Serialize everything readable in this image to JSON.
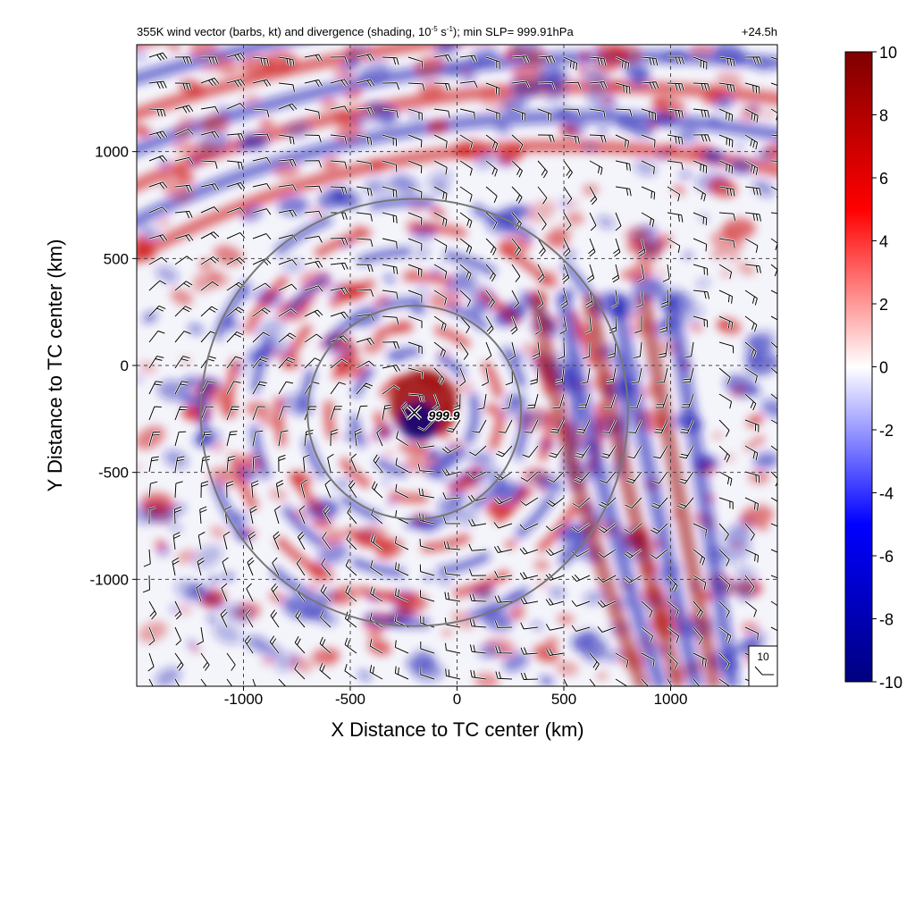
{
  "chart_data": {
    "type": "heatmap",
    "title": "355K wind vector (barbs, kt) and divergence (shading, 10",
    "title_sup1": "-5",
    "title_mid": " s",
    "title_sup2": "-1",
    "title_tail": "); min SLP= 999.91hPa",
    "forecast_time": "+24.5h",
    "xlabel": "X Distance to TC center (km)",
    "ylabel": "Y Distance to TC center (km)",
    "xlim": [
      -1500,
      1500
    ],
    "ylim": [
      -1500,
      1500
    ],
    "x_ticks": [
      -1000,
      -500,
      0,
      500,
      1000
    ],
    "y_ticks": [
      1000,
      500,
      0,
      -500,
      -1000
    ],
    "x_tick_labels": [
      "-1000",
      "-500",
      "0",
      "500",
      "1000"
    ],
    "y_tick_labels": [
      "1000",
      "500",
      "0",
      "-500",
      "-1000"
    ],
    "grid": "dashed",
    "colorbar": {
      "min": -10,
      "max": 10,
      "ticks": [
        10,
        8,
        6,
        4,
        2,
        0,
        -2,
        -4,
        -6,
        -8,
        -10
      ],
      "tick_labels": [
        "10",
        "8",
        "6",
        "4",
        "2",
        "0",
        "-2",
        "-4",
        "-6",
        "-8",
        "-10"
      ],
      "colors": [
        "#00007f",
        "#0000ff",
        "#ffffff",
        "#ff0000",
        "#7f0000"
      ]
    },
    "range_rings_km": [
      500,
      1000
    ],
    "ring_center_km": [
      -200,
      -220
    ],
    "center_marker": {
      "x": -200,
      "y": -220,
      "label": "999.9"
    },
    "reference_barb": {
      "label": "10"
    },
    "colors": {
      "positive": "#cc0000",
      "negative": "#1a1ab4",
      "ring": "#777777",
      "grid": "#444444"
    }
  }
}
